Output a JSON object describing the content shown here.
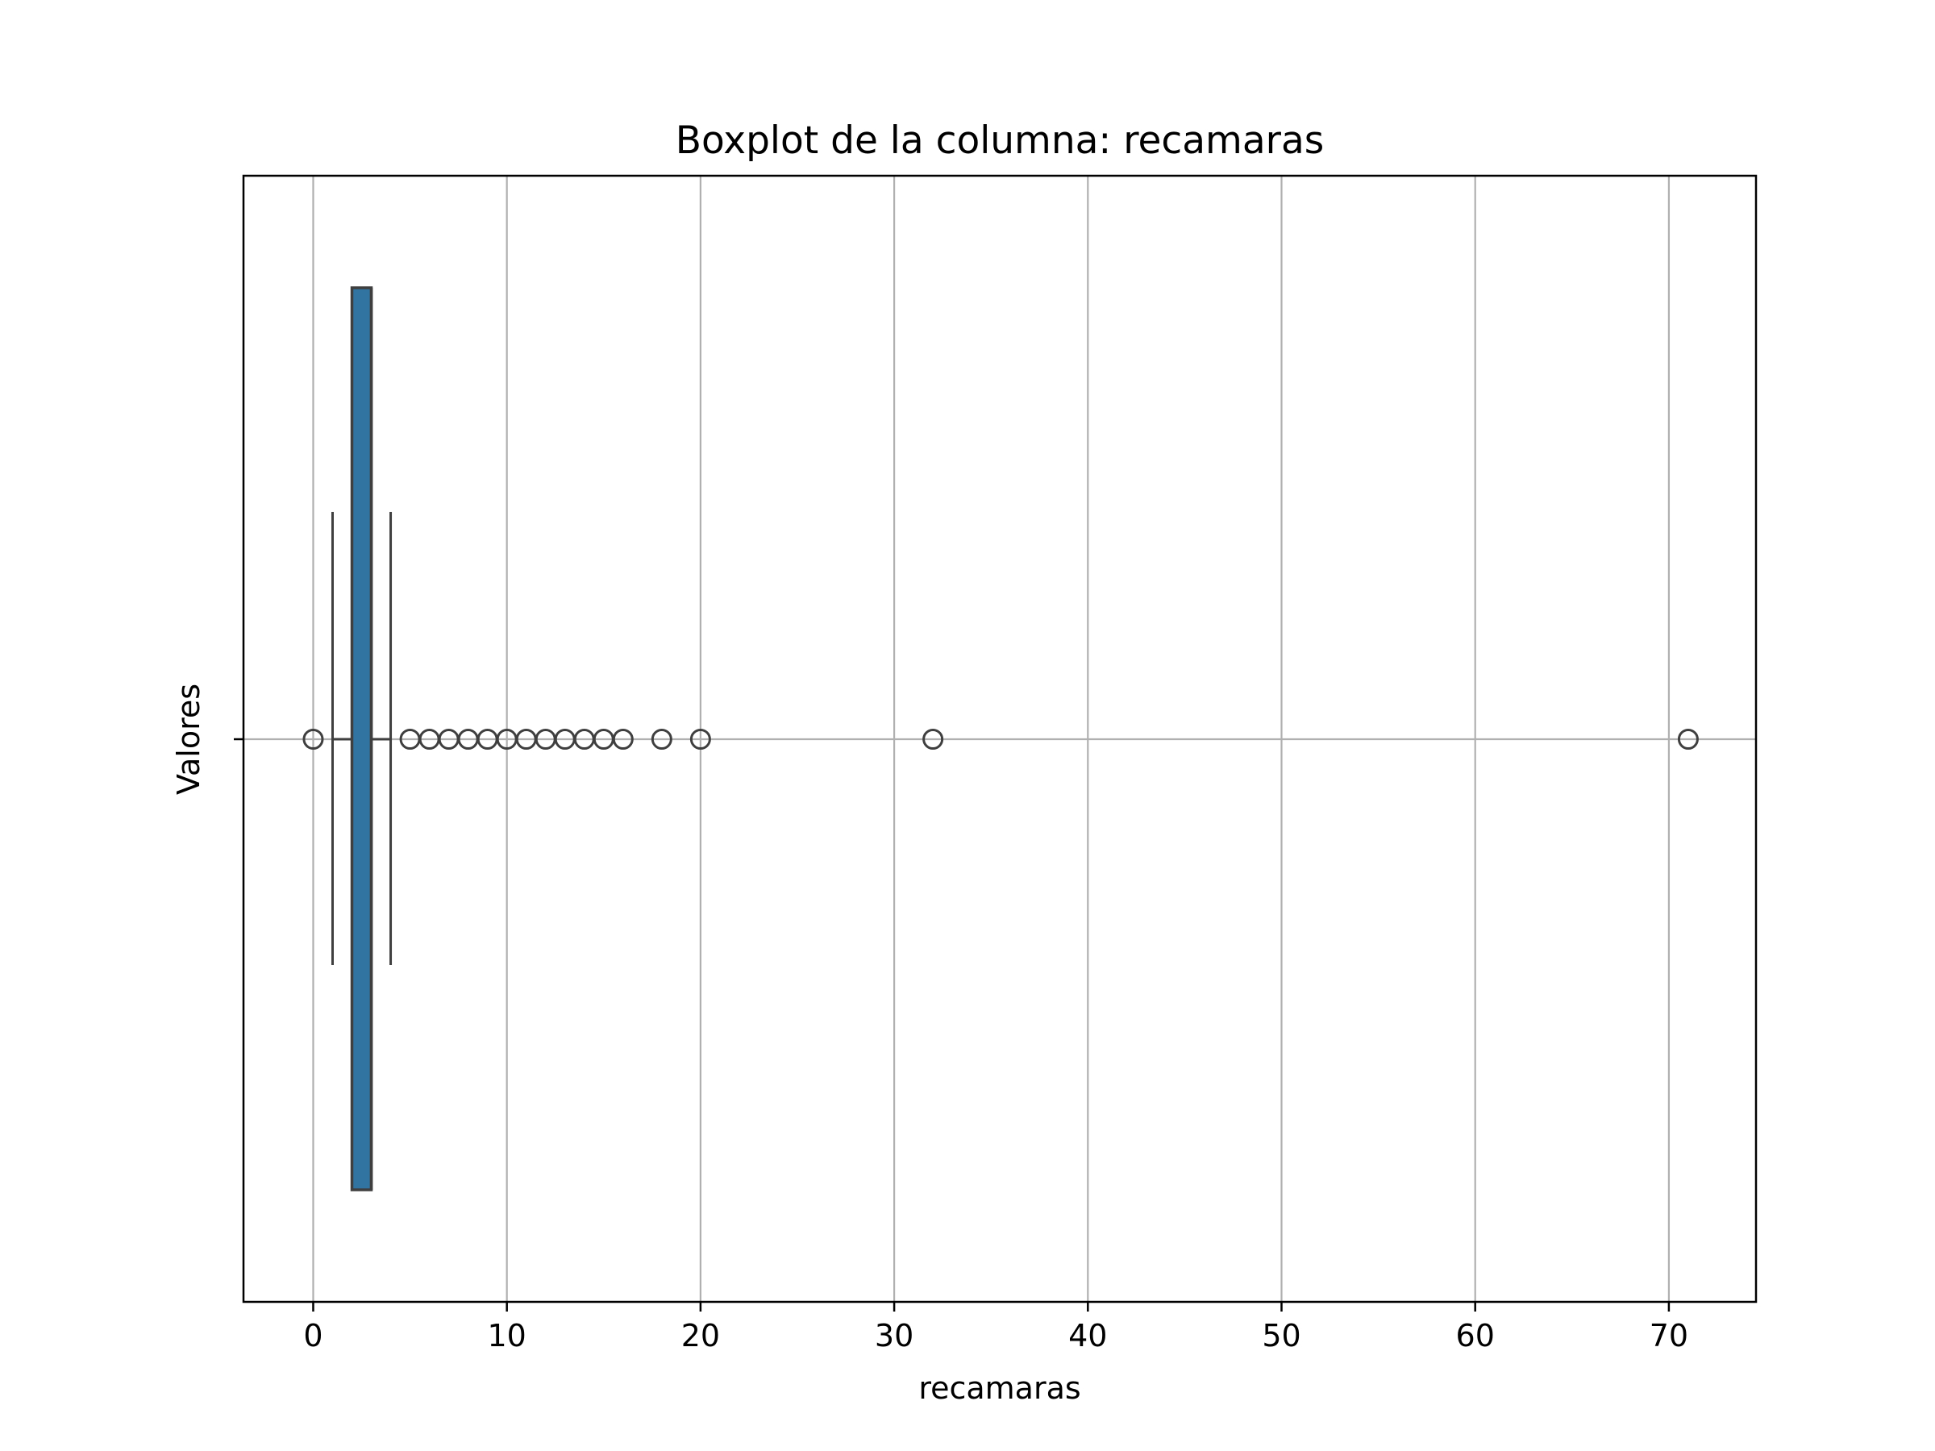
{
  "chart_data": {
    "type": "boxplot",
    "title": "Boxplot de la columna: recamaras",
    "xlabel": "recamaras",
    "ylabel": "Valores",
    "xlim": [
      -3.6,
      74.5
    ],
    "x_ticks": [
      0,
      10,
      20,
      30,
      40,
      50,
      60,
      70
    ],
    "grid": true,
    "orientation": "horizontal",
    "box": {
      "whisker_low": 1,
      "q1": 2,
      "median": 3,
      "q3": 3,
      "whisker_high": 4
    },
    "outliers": [
      0,
      5,
      6,
      7,
      8,
      9,
      10,
      11,
      12,
      13,
      14,
      15,
      16,
      18,
      20,
      32,
      71
    ]
  },
  "colors": {
    "box_fill": "#3274a1",
    "box_edge": "#3f3f3f",
    "grid": "#b0b0b0",
    "axes": "#000000"
  }
}
